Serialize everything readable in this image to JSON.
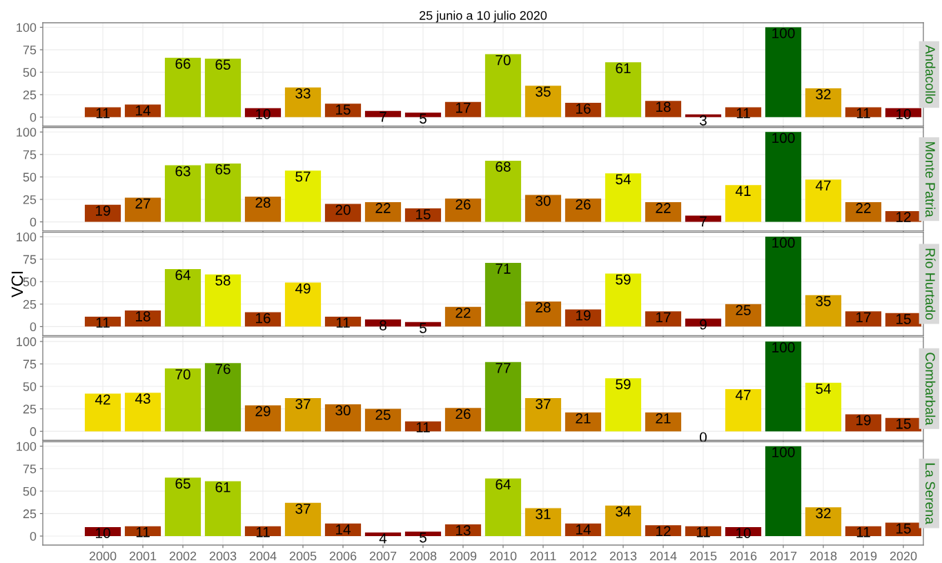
{
  "chart_data": [
    {
      "type": "bar",
      "title": "Andacollo",
      "annotations": [
        "25 junio a 10 julio 2020"
      ],
      "categories": [
        "2000",
        "2001",
        "2002",
        "2003",
        "2004",
        "2005",
        "2006",
        "2007",
        "2008",
        "2009",
        "2010",
        "2011",
        "2012",
        "2013",
        "2014",
        "2015",
        "2016",
        "2017",
        "2018",
        "2019",
        "2020"
      ],
      "values": [
        11,
        14,
        66,
        65,
        10,
        33,
        15,
        7,
        5,
        17,
        70,
        35,
        16,
        61,
        18,
        3,
        11,
        100,
        32,
        11,
        10
      ],
      "colors": [
        "#a83800",
        "#a83800",
        "#a8cc00",
        "#a8cc00",
        "#8b0000",
        "#d9a400",
        "#a83800",
        "#8b0000",
        "#8b0000",
        "#a83800",
        "#a8cc00",
        "#d9a400",
        "#a83800",
        "#a8cc00",
        "#a83800",
        "#8b0000",
        "#a83800",
        "#006400",
        "#d9a400",
        "#a83800",
        "#8b0000"
      ],
      "ylim": [
        -10,
        105
      ],
      "yticks": [
        0,
        25,
        50,
        75,
        100
      ],
      "grid": true,
      "data_labels": true,
      "tick_labels": "y"
    },
    {
      "type": "bar",
      "title": "Monte Patria",
      "categories": [
        "2000",
        "2001",
        "2002",
        "2003",
        "2004",
        "2005",
        "2006",
        "2007",
        "2008",
        "2009",
        "2010",
        "2011",
        "2012",
        "2013",
        "2014",
        "2015",
        "2016",
        "2017",
        "2018",
        "2019",
        "2020"
      ],
      "values": [
        19,
        27,
        63,
        65,
        28,
        57,
        20,
        22,
        15,
        26,
        68,
        30,
        26,
        54,
        22,
        7,
        41,
        100,
        47,
        22,
        12
      ],
      "colors": [
        "#a83800",
        "#c06a00",
        "#a8cc00",
        "#a8cc00",
        "#c06a00",
        "#e5ed00",
        "#a83800",
        "#c06a00",
        "#a83800",
        "#c06a00",
        "#a8cc00",
        "#c06a00",
        "#c06a00",
        "#e5ed00",
        "#c06a00",
        "#8b0000",
        "#f2dc00",
        "#006400",
        "#f2dc00",
        "#c06a00",
        "#a83800"
      ],
      "ylim": [
        -10,
        105
      ],
      "yticks": [
        0,
        25,
        50,
        75,
        100
      ],
      "grid": true,
      "data_labels": true,
      "tick_labels": "y"
    },
    {
      "type": "bar",
      "title": "Río Hurtado",
      "ylabel": "VCI",
      "categories": [
        "2000",
        "2001",
        "2002",
        "2003",
        "2004",
        "2005",
        "2006",
        "2007",
        "2008",
        "2009",
        "2010",
        "2011",
        "2012",
        "2013",
        "2014",
        "2015",
        "2016",
        "2017",
        "2018",
        "2019",
        "2020"
      ],
      "values": [
        11,
        18,
        64,
        58,
        16,
        49,
        11,
        8,
        5,
        22,
        71,
        28,
        19,
        59,
        17,
        9,
        25,
        100,
        35,
        17,
        15
      ],
      "colors": [
        "#a83800",
        "#a83800",
        "#a8cc00",
        "#e5ed00",
        "#a83800",
        "#f2dc00",
        "#a83800",
        "#8b0000",
        "#8b0000",
        "#c06a00",
        "#6aa800",
        "#c06a00",
        "#a83800",
        "#e5ed00",
        "#a83800",
        "#8b0000",
        "#c06a00",
        "#006400",
        "#d9a400",
        "#a83800",
        "#a83800"
      ],
      "ylim": [
        -10,
        105
      ],
      "yticks": [
        0,
        25,
        50,
        75,
        100
      ],
      "grid": true,
      "data_labels": true,
      "tick_labels": "y"
    },
    {
      "type": "bar",
      "title": "Combarbala",
      "categories": [
        "2000",
        "2001",
        "2002",
        "2003",
        "2004",
        "2005",
        "2006",
        "2007",
        "2008",
        "2009",
        "2010",
        "2011",
        "2012",
        "2013",
        "2014",
        "2015",
        "2016",
        "2017",
        "2018",
        "2019",
        "2020"
      ],
      "values": [
        42,
        43,
        70,
        76,
        29,
        37,
        30,
        25,
        11,
        26,
        77,
        37,
        21,
        59,
        21,
        0,
        47,
        100,
        54,
        19,
        15
      ],
      "colors": [
        "#f2dc00",
        "#f2dc00",
        "#a8cc00",
        "#6aa800",
        "#c06a00",
        "#d9a400",
        "#c06a00",
        "#c06a00",
        "#a83800",
        "#c06a00",
        "#6aa800",
        "#d9a400",
        "#c06a00",
        "#e5ed00",
        "#c06a00",
        "#8b0000",
        "#f2dc00",
        "#006400",
        "#e5ed00",
        "#a83800",
        "#a83800"
      ],
      "ylim": [
        -10,
        105
      ],
      "yticks": [
        0,
        25,
        50,
        75,
        100
      ],
      "grid": true,
      "data_labels": true,
      "tick_labels": "y"
    },
    {
      "type": "bar",
      "title": "La Serena",
      "categories": [
        "2000",
        "2001",
        "2002",
        "2003",
        "2004",
        "2005",
        "2006",
        "2007",
        "2008",
        "2009",
        "2010",
        "2011",
        "2012",
        "2013",
        "2014",
        "2015",
        "2016",
        "2017",
        "2018",
        "2019",
        "2020"
      ],
      "values": [
        10,
        11,
        65,
        61,
        11,
        37,
        14,
        4,
        5,
        13,
        64,
        31,
        14,
        34,
        12,
        11,
        10,
        100,
        32,
        11,
        15
      ],
      "colors": [
        "#8b0000",
        "#a83800",
        "#a8cc00",
        "#a8cc00",
        "#a83800",
        "#d9a400",
        "#a83800",
        "#8b0000",
        "#8b0000",
        "#a83800",
        "#a8cc00",
        "#d9a400",
        "#a83800",
        "#d9a400",
        "#a83800",
        "#a83800",
        "#8b0000",
        "#006400",
        "#d9a400",
        "#a83800",
        "#a83800"
      ],
      "ylim": [
        -10,
        105
      ],
      "yticks": [
        0,
        25,
        50,
        75,
        100
      ],
      "grid": true,
      "data_labels": true
    }
  ]
}
